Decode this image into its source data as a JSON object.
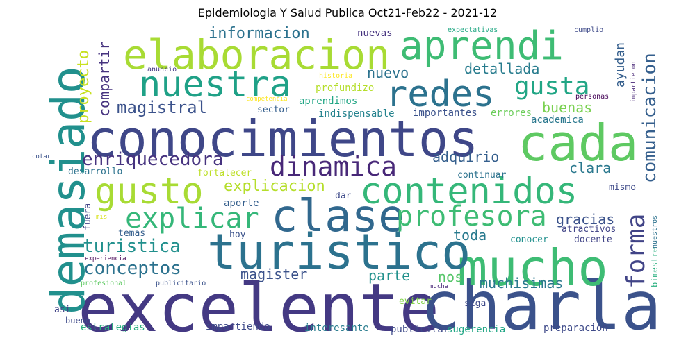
{
  "title": "Epidemiologia Y Salud Publica Oct21-Feb22 - 2021-12",
  "words": [
    {
      "text": "excelente",
      "color": "#443983"
    },
    {
      "text": "charla",
      "color": "#3b528b"
    },
    {
      "text": "conocimientos",
      "color": "#3f4788"
    },
    {
      "text": "mucho",
      "color": "#3ebc74"
    },
    {
      "text": "cada",
      "color": "#5ec962"
    },
    {
      "text": "demasiado",
      "color": "#21908d"
    },
    {
      "text": "turistico",
      "color": "#2c728e"
    },
    {
      "text": "clase",
      "color": "#31688e"
    },
    {
      "text": "contenidos",
      "color": "#35b779"
    },
    {
      "text": "elaboracion",
      "color": "#a8db34"
    },
    {
      "text": "aprendi",
      "color": "#3ebc74"
    },
    {
      "text": "nuestra",
      "color": "#1fa187"
    },
    {
      "text": "redes",
      "color": "#2c728e"
    },
    {
      "text": "gusto",
      "color": "#a8db34"
    },
    {
      "text": "explicar",
      "color": "#35b779"
    },
    {
      "text": "profesora",
      "color": "#3ebc74"
    },
    {
      "text": "dinamica",
      "color": "#482878"
    },
    {
      "text": "gusta",
      "color": "#21a685"
    },
    {
      "text": "forma",
      "color": "#414487"
    },
    {
      "text": "enriquecedora",
      "color": "#46337f"
    },
    {
      "text": "conceptos",
      "color": "#2c728e"
    },
    {
      "text": "turistica",
      "color": "#21908d"
    },
    {
      "text": "comunicacion",
      "color": "#355f8d"
    },
    {
      "text": "magistral",
      "color": "#3b528b"
    },
    {
      "text": "informacion",
      "color": "#2c728e"
    },
    {
      "text": "explicacion",
      "color": "#b5de2b"
    },
    {
      "text": "proyecto",
      "color": "#c8e020"
    },
    {
      "text": "compartir",
      "color": "#46337f"
    },
    {
      "text": "nuevo",
      "color": "#2c728e"
    },
    {
      "text": "detallada",
      "color": "#287c8e"
    },
    {
      "text": "buenas",
      "color": "#7ad151"
    },
    {
      "text": "adquirio",
      "color": "#355f8d"
    },
    {
      "text": "clara",
      "color": "#2a788e"
    },
    {
      "text": "magister",
      "color": "#3b528b"
    },
    {
      "text": "parte",
      "color": "#21918c"
    },
    {
      "text": "toda",
      "color": "#297a8e"
    },
    {
      "text": "gracias",
      "color": "#3b528b"
    },
    {
      "text": "muchisimas",
      "color": "#2a788e"
    },
    {
      "text": "nos",
      "color": "#54c568"
    },
    {
      "text": "ayudan",
      "color": "#355f8d"
    },
    {
      "text": "nuevas",
      "color": "#46337f"
    },
    {
      "text": "expectativas",
      "color": "#22a884"
    },
    {
      "text": "cumplio",
      "color": "#3e4a89"
    },
    {
      "text": "anuncio",
      "color": "#443a83"
    },
    {
      "text": "historia",
      "color": "#fde725"
    },
    {
      "text": "impartieron",
      "color": "#482677"
    },
    {
      "text": "profundizo",
      "color": "#b5de2b"
    },
    {
      "text": "personas",
      "color": "#450457"
    },
    {
      "text": "competencia",
      "color": "#fde725"
    },
    {
      "text": "sector",
      "color": "#355f8d"
    },
    {
      "text": "aprendimos",
      "color": "#21a685"
    },
    {
      "text": "indispensable",
      "color": "#25838e"
    },
    {
      "text": "importantes",
      "color": "#3b528b"
    },
    {
      "text": "errores",
      "color": "#6ccd5a"
    },
    {
      "text": "academica",
      "color": "#2a788e"
    },
    {
      "text": "cotar",
      "color": "#3b528b"
    },
    {
      "text": "desarrollo",
      "color": "#2c728e"
    },
    {
      "text": "fortalecer",
      "color": "#bddf26"
    },
    {
      "text": "continuar",
      "color": "#2c728e"
    },
    {
      "text": "mismo",
      "color": "#3e4a89"
    },
    {
      "text": "aporte",
      "color": "#355f8d"
    },
    {
      "text": "dar",
      "color": "#3e4a89"
    },
    {
      "text": "fuera",
      "color": "#414487"
    },
    {
      "text": "mis",
      "color": "#d8e219"
    },
    {
      "text": "temas",
      "color": "#355f8d"
    },
    {
      "text": "hoy",
      "color": "#3b528b"
    },
    {
      "text": "atractivos",
      "color": "#414487"
    },
    {
      "text": "nuestros",
      "color": "#2c728e"
    },
    {
      "text": "docente",
      "color": "#414487"
    },
    {
      "text": "conocer",
      "color": "#21908d"
    },
    {
      "text": "experiencia",
      "color": "#440154"
    },
    {
      "text": "profesional",
      "color": "#5ec962"
    },
    {
      "text": "publicitario",
      "color": "#3b528b"
    },
    {
      "text": "bimestre",
      "color": "#29af7f"
    },
    {
      "text": "mucha",
      "color": "#482878"
    },
    {
      "text": "evitar",
      "color": "#84d44b"
    },
    {
      "text": "siga",
      "color": "#3e4a89"
    },
    {
      "text": "bueno",
      "color": "#3e4a89"
    },
    {
      "text": "asi",
      "color": "#414487"
    },
    {
      "text": "estrategias",
      "color": "#29af7f"
    },
    {
      "text": "impartiendo",
      "color": "#3e4a89"
    },
    {
      "text": "interesante",
      "color": "#287c8e"
    },
    {
      "text": "publicitar",
      "color": "#3e4a89"
    },
    {
      "text": "sugerencia",
      "color": "#21a685"
    },
    {
      "text": "preparacion",
      "color": "#3e4a89"
    }
  ]
}
